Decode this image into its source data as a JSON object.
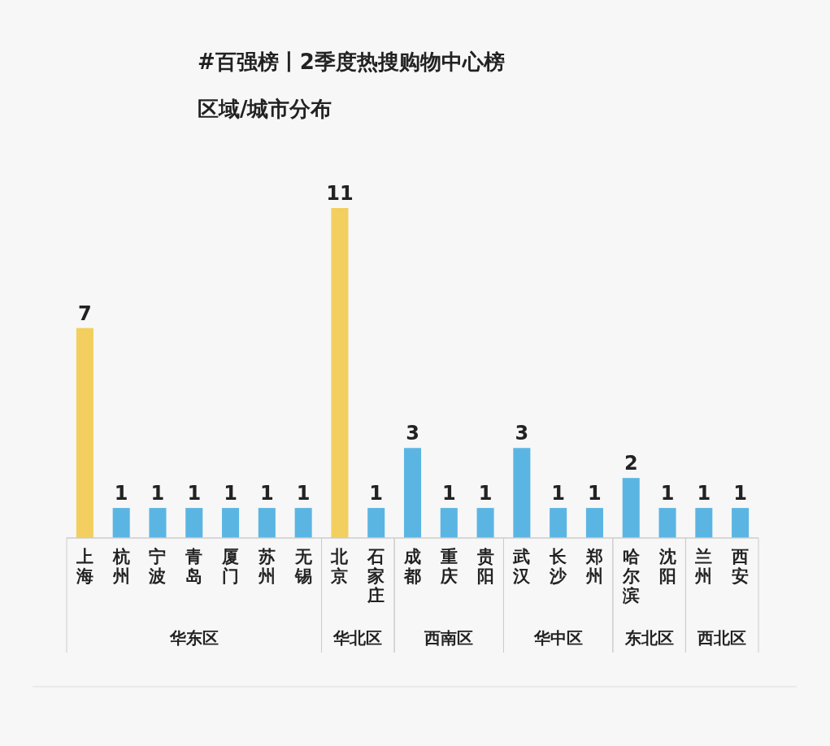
{
  "chart_data": {
    "type": "bar",
    "title": "#百强榜丨2季度热搜购物中心榜",
    "subtitle": "区域/城市分布",
    "categories": [
      "上海",
      "杭州",
      "宁波",
      "青岛",
      "厦门",
      "苏州",
      "无锡",
      "北京",
      "石家庄",
      "成都",
      "重庆",
      "贵阳",
      "武汉",
      "长沙",
      "郑州",
      "哈尔滨",
      "沈阳",
      "兰州",
      "西安"
    ],
    "values": [
      7,
      1,
      1,
      1,
      1,
      1,
      1,
      11,
      1,
      3,
      1,
      1,
      3,
      1,
      1,
      2,
      1,
      1,
      1
    ],
    "colors": [
      "#f2cf5e",
      "#5bb5e3",
      "#5bb5e3",
      "#5bb5e3",
      "#5bb5e3",
      "#5bb5e3",
      "#5bb5e3",
      "#f2cf5e",
      "#5bb5e3",
      "#5bb5e3",
      "#5bb5e3",
      "#5bb5e3",
      "#5bb5e3",
      "#5bb5e3",
      "#5bb5e3",
      "#5bb5e3",
      "#5bb5e3",
      "#5bb5e3",
      "#5bb5e3"
    ],
    "data_labels": true,
    "annotations": [
      "华东区",
      "华北区",
      "西南区",
      "华中区",
      "东北区",
      "西北区"
    ]
  }
}
